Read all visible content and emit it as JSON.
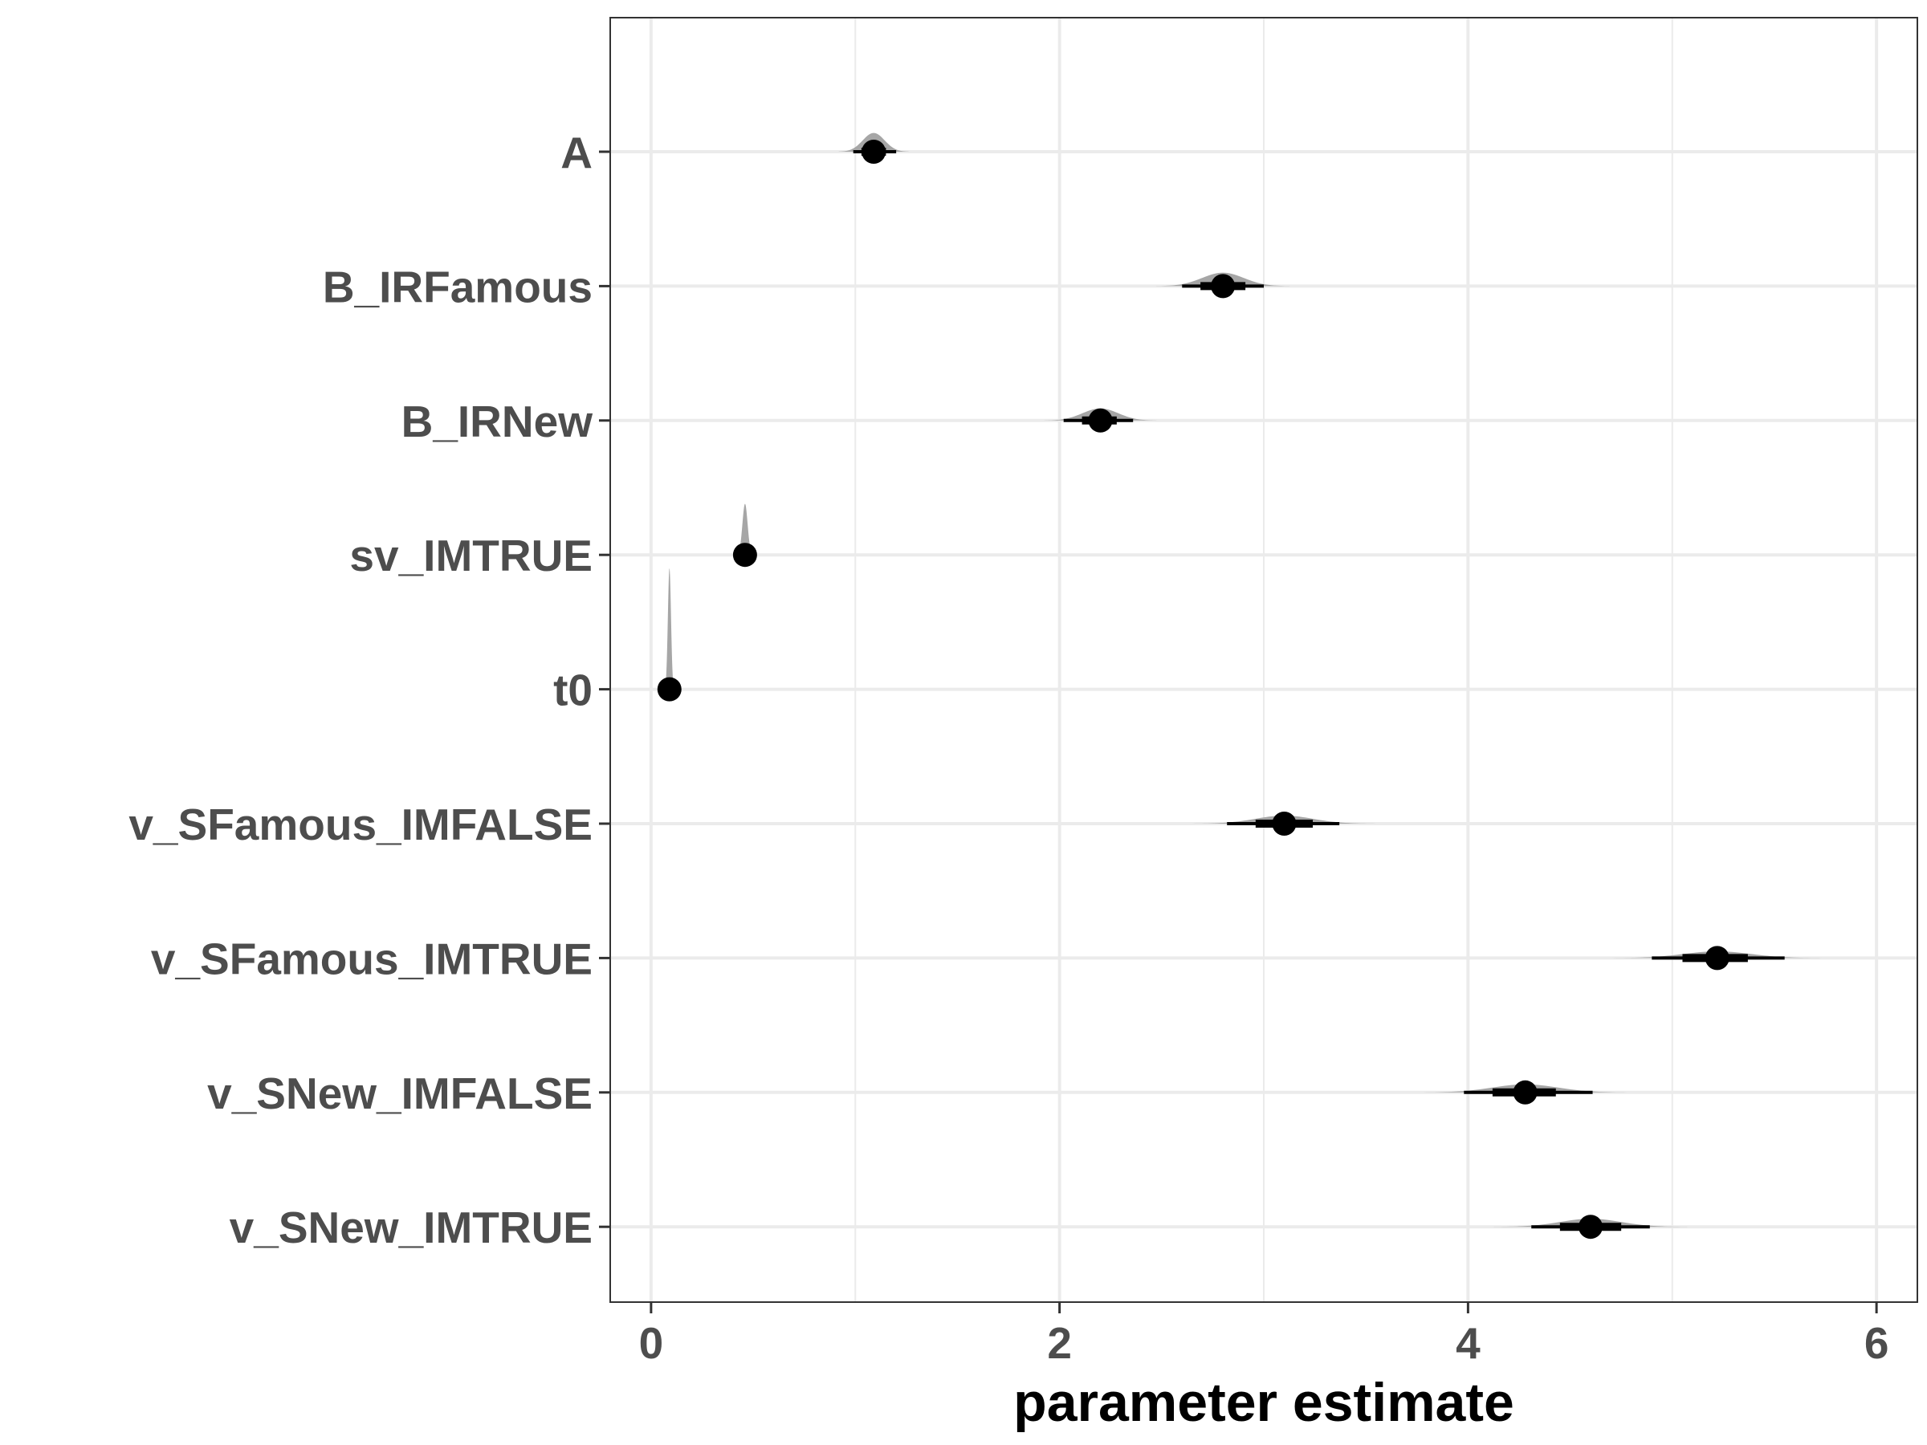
{
  "chart_data": {
    "type": "scatter",
    "title": "",
    "xlabel": "parameter estimate",
    "ylabel": "",
    "xlim": [
      -0.2,
      6.2
    ],
    "x_ticks": [
      "0",
      "2",
      "4",
      "6"
    ],
    "x_tick_values": [
      0,
      2,
      4,
      6
    ],
    "x_minor_gridlines": [
      1,
      3,
      5
    ],
    "grid": true,
    "legend": "none",
    "colors": {
      "point": "#000000",
      "interval": "#000000",
      "density": "#a6a6a6",
      "grid": "#ebebeb",
      "tick_label": "#4d4d4d",
      "axis_title": "#000000",
      "panel_border": "#333333"
    },
    "categories": [
      "A",
      "B_IRFamous",
      "B_IRNew",
      "sv_IMTRUE",
      "t0",
      "v_SFamous_IMFALSE",
      "v_SFamous_IMTRUE",
      "v_SNew_IMFALSE",
      "v_SNew_IMTRUE"
    ],
    "series": [
      {
        "values": [
          1.09,
          2.8,
          2.2,
          0.46,
          0.09,
          3.1,
          5.22,
          4.28,
          4.6
        ],
        "interval_66": [
          [
            1.03,
            1.15
          ],
          [
            2.69,
            2.91
          ],
          [
            2.11,
            2.28
          ],
          [
            0.45,
            0.48
          ],
          [
            0.085,
            0.1
          ],
          [
            2.96,
            3.24
          ],
          [
            5.05,
            5.37
          ],
          [
            4.12,
            4.43
          ],
          [
            4.45,
            4.75
          ]
        ],
        "interval_95": [
          [
            0.99,
            1.2
          ],
          [
            2.6,
            3.0
          ],
          [
            2.02,
            2.36
          ],
          [
            0.44,
            0.49
          ],
          [
            0.08,
            0.11
          ],
          [
            2.82,
            3.37
          ],
          [
            4.9,
            5.55
          ],
          [
            3.98,
            4.61
          ],
          [
            4.31,
            4.89
          ]
        ],
        "density_peak_height": [
          0.14,
          0.1,
          0.09,
          0.38,
          0.9,
          0.06,
          0.05,
          0.06,
          0.06
        ]
      }
    ]
  }
}
